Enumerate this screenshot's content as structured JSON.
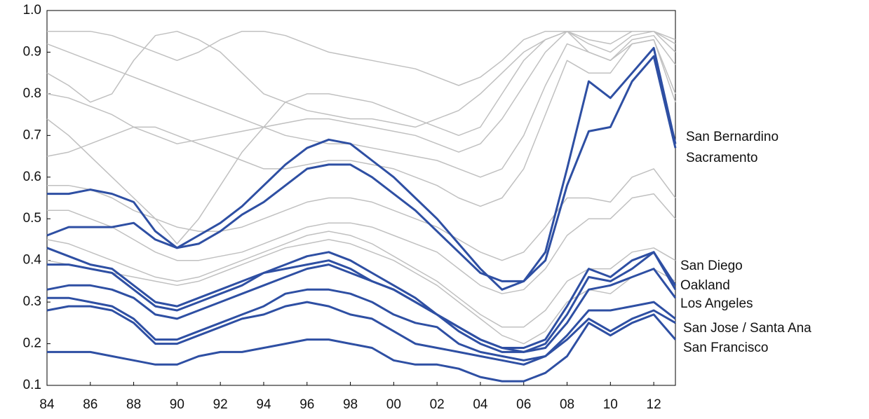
{
  "chart_data": {
    "type": "line",
    "x": [
      1984,
      1985,
      1986,
      1987,
      1988,
      1989,
      1990,
      1991,
      1992,
      1993,
      1994,
      1995,
      1996,
      1997,
      1998,
      1999,
      2000,
      2001,
      2002,
      2003,
      2004,
      2005,
      2006,
      2007,
      2008,
      2009,
      2010,
      2011,
      2012,
      2013
    ],
    "xlim": [
      1984,
      2013
    ],
    "xticks": [
      {
        "value": 1984,
        "label": "84"
      },
      {
        "value": 1986,
        "label": "86"
      },
      {
        "value": 1988,
        "label": "88"
      },
      {
        "value": 1990,
        "label": "90"
      },
      {
        "value": 1992,
        "label": "92"
      },
      {
        "value": 1994,
        "label": "94"
      },
      {
        "value": 1996,
        "label": "96"
      },
      {
        "value": 1998,
        "label": "98"
      },
      {
        "value": 2000,
        "label": "00"
      },
      {
        "value": 2002,
        "label": "02"
      },
      {
        "value": 2004,
        "label": "04"
      },
      {
        "value": 2006,
        "label": "06"
      },
      {
        "value": 2008,
        "label": "08"
      },
      {
        "value": 2010,
        "label": "10"
      },
      {
        "value": 2012,
        "label": "12"
      }
    ],
    "ylim": [
      0.1,
      1.0
    ],
    "yticks": [
      0.1,
      0.2,
      0.3,
      0.4,
      0.5,
      0.6,
      0.7,
      0.8,
      0.9,
      {
        "value": 1.0,
        "label": "1.0"
      }
    ],
    "grid": false,
    "series": [
      {
        "color": "#c0c0c0",
        "values": [
          0.95,
          0.95,
          0.95,
          0.94,
          0.92,
          0.9,
          0.88,
          0.9,
          0.93,
          0.95,
          0.95,
          0.94,
          0.92,
          0.9,
          0.89,
          0.88,
          0.87,
          0.86,
          0.84,
          0.82,
          0.84,
          0.88,
          0.93,
          0.95,
          0.95,
          0.95,
          0.95,
          0.95,
          0.95,
          0.93
        ]
      },
      {
        "color": "#c0c0c0",
        "values": [
          0.85,
          0.82,
          0.78,
          0.8,
          0.88,
          0.94,
          0.95,
          0.93,
          0.9,
          0.85,
          0.8,
          0.78,
          0.76,
          0.75,
          0.74,
          0.74,
          0.73,
          0.72,
          0.74,
          0.76,
          0.8,
          0.85,
          0.9,
          0.93,
          0.95,
          0.93,
          0.92,
          0.95,
          0.95,
          0.92
        ]
      },
      {
        "color": "#c0c0c0",
        "values": [
          0.74,
          0.7,
          0.65,
          0.6,
          0.55,
          0.5,
          0.44,
          0.5,
          0.58,
          0.66,
          0.72,
          0.78,
          0.8,
          0.8,
          0.79,
          0.78,
          0.76,
          0.74,
          0.72,
          0.7,
          0.72,
          0.8,
          0.88,
          0.93,
          0.95,
          0.9,
          0.88,
          0.93,
          0.94,
          0.87
        ]
      },
      {
        "color": "#c0c0c0",
        "values": [
          0.65,
          0.66,
          0.68,
          0.7,
          0.72,
          0.72,
          0.7,
          0.68,
          0.66,
          0.64,
          0.62,
          0.62,
          0.63,
          0.64,
          0.64,
          0.63,
          0.62,
          0.6,
          0.58,
          0.55,
          0.53,
          0.55,
          0.62,
          0.75,
          0.88,
          0.85,
          0.85,
          0.92,
          0.93,
          0.8
        ]
      },
      {
        "color": "#c0c0c0",
        "values": [
          0.58,
          0.58,
          0.57,
          0.55,
          0.52,
          0.5,
          0.48,
          0.47,
          0.47,
          0.48,
          0.5,
          0.52,
          0.54,
          0.55,
          0.55,
          0.54,
          0.52,
          0.5,
          0.48,
          0.45,
          0.42,
          0.4,
          0.42,
          0.48,
          0.55,
          0.55,
          0.54,
          0.6,
          0.62,
          0.55
        ]
      },
      {
        "color": "#c0c0c0",
        "values": [
          0.52,
          0.52,
          0.5,
          0.48,
          0.45,
          0.42,
          0.4,
          0.4,
          0.41,
          0.42,
          0.44,
          0.46,
          0.48,
          0.49,
          0.49,
          0.48,
          0.46,
          0.44,
          0.42,
          0.38,
          0.34,
          0.32,
          0.33,
          0.38,
          0.46,
          0.5,
          0.5,
          0.55,
          0.56,
          0.5
        ]
      },
      {
        "color": "#c0c0c0",
        "values": [
          0.45,
          0.44,
          0.42,
          0.4,
          0.38,
          0.36,
          0.35,
          0.36,
          0.38,
          0.4,
          0.42,
          0.44,
          0.46,
          0.47,
          0.46,
          0.44,
          0.41,
          0.38,
          0.35,
          0.31,
          0.27,
          0.24,
          0.24,
          0.28,
          0.35,
          0.38,
          0.38,
          0.42,
          0.43,
          0.4
        ]
      },
      {
        "color": "#c0c0c0",
        "values": [
          0.8,
          0.79,
          0.77,
          0.75,
          0.72,
          0.7,
          0.68,
          0.69,
          0.7,
          0.71,
          0.72,
          0.73,
          0.74,
          0.74,
          0.73,
          0.72,
          0.71,
          0.7,
          0.68,
          0.66,
          0.68,
          0.74,
          0.82,
          0.9,
          0.95,
          0.92,
          0.9,
          0.94,
          0.95,
          0.9
        ]
      },
      {
        "color": "#c0c0c0",
        "values": [
          0.92,
          0.9,
          0.88,
          0.86,
          0.84,
          0.82,
          0.8,
          0.78,
          0.76,
          0.74,
          0.72,
          0.7,
          0.69,
          0.68,
          0.68,
          0.67,
          0.66,
          0.65,
          0.64,
          0.62,
          0.6,
          0.62,
          0.7,
          0.82,
          0.92,
          0.9,
          0.88,
          0.92,
          0.93,
          0.78
        ]
      },
      {
        "color": "#c0c0c0",
        "values": [
          0.4,
          0.39,
          0.38,
          0.37,
          0.36,
          0.35,
          0.34,
          0.35,
          0.37,
          0.39,
          0.41,
          0.43,
          0.44,
          0.45,
          0.44,
          0.42,
          0.4,
          0.37,
          0.34,
          0.3,
          0.26,
          0.22,
          0.2,
          0.23,
          0.3,
          0.33,
          0.32,
          0.36,
          0.38,
          0.35
        ]
      },
      {
        "color": "#2e4fa3",
        "values": [
          0.46,
          0.48,
          0.48,
          0.48,
          0.49,
          0.45,
          0.43,
          0.46,
          0.49,
          0.53,
          0.58,
          0.63,
          0.67,
          0.69,
          0.68,
          0.64,
          0.6,
          0.55,
          0.5,
          0.44,
          0.38,
          0.33,
          0.35,
          0.42,
          0.62,
          0.83,
          0.79,
          0.85,
          0.91,
          0.68
        ]
      },
      {
        "color": "#2e4fa3",
        "values": [
          0.56,
          0.56,
          0.57,
          0.56,
          0.54,
          0.47,
          0.43,
          0.44,
          0.47,
          0.51,
          0.54,
          0.58,
          0.62,
          0.63,
          0.63,
          0.6,
          0.56,
          0.52,
          0.47,
          0.42,
          0.37,
          0.35,
          0.35,
          0.4,
          0.58,
          0.71,
          0.72,
          0.83,
          0.89,
          0.67
        ]
      },
      {
        "color": "#2e4fa3",
        "values": [
          0.43,
          0.41,
          0.39,
          0.38,
          0.34,
          0.3,
          0.29,
          0.31,
          0.33,
          0.35,
          0.37,
          0.39,
          0.41,
          0.42,
          0.4,
          0.37,
          0.34,
          0.31,
          0.27,
          0.24,
          0.21,
          0.19,
          0.19,
          0.21,
          0.29,
          0.38,
          0.36,
          0.4,
          0.42,
          0.34
        ]
      },
      {
        "color": "#2e4fa3",
        "values": [
          0.39,
          0.39,
          0.38,
          0.37,
          0.33,
          0.29,
          0.28,
          0.3,
          0.32,
          0.34,
          0.37,
          0.38,
          0.39,
          0.4,
          0.38,
          0.35,
          0.33,
          0.3,
          0.27,
          0.24,
          0.21,
          0.19,
          0.18,
          0.2,
          0.27,
          0.36,
          0.35,
          0.38,
          0.42,
          0.33
        ]
      },
      {
        "color": "#2e4fa3",
        "values": [
          0.33,
          0.34,
          0.34,
          0.33,
          0.31,
          0.27,
          0.26,
          0.28,
          0.3,
          0.32,
          0.34,
          0.36,
          0.38,
          0.39,
          0.37,
          0.35,
          0.33,
          0.3,
          0.27,
          0.23,
          0.2,
          0.18,
          0.18,
          0.19,
          0.25,
          0.33,
          0.34,
          0.36,
          0.38,
          0.31
        ]
      },
      {
        "color": "#2e4fa3",
        "values": [
          0.31,
          0.31,
          0.3,
          0.29,
          0.26,
          0.21,
          0.21,
          0.23,
          0.25,
          0.27,
          0.29,
          0.32,
          0.33,
          0.33,
          0.32,
          0.3,
          0.27,
          0.25,
          0.24,
          0.2,
          0.18,
          0.17,
          0.16,
          0.17,
          0.22,
          0.28,
          0.28,
          0.29,
          0.3,
          0.26
        ]
      },
      {
        "color": "#2e4fa3",
        "values": [
          0.28,
          0.29,
          0.29,
          0.28,
          0.25,
          0.2,
          0.2,
          0.22,
          0.24,
          0.26,
          0.27,
          0.29,
          0.3,
          0.29,
          0.27,
          0.26,
          0.23,
          0.2,
          0.19,
          0.18,
          0.17,
          0.16,
          0.15,
          0.17,
          0.21,
          0.26,
          0.23,
          0.26,
          0.28,
          0.25
        ]
      },
      {
        "color": "#2e4fa3",
        "values": [
          0.18,
          0.18,
          0.18,
          0.17,
          0.16,
          0.15,
          0.15,
          0.17,
          0.18,
          0.18,
          0.19,
          0.2,
          0.21,
          0.21,
          0.2,
          0.19,
          0.16,
          0.15,
          0.15,
          0.14,
          0.12,
          0.11,
          0.11,
          0.13,
          0.17,
          0.25,
          0.22,
          0.25,
          0.27,
          0.21
        ]
      }
    ],
    "annotations": [
      "San Bernardino",
      "Sacramento",
      "San Diego",
      "Oakland",
      "Los Angeles",
      "San Jose / Santa Ana",
      "San Francisco"
    ]
  }
}
